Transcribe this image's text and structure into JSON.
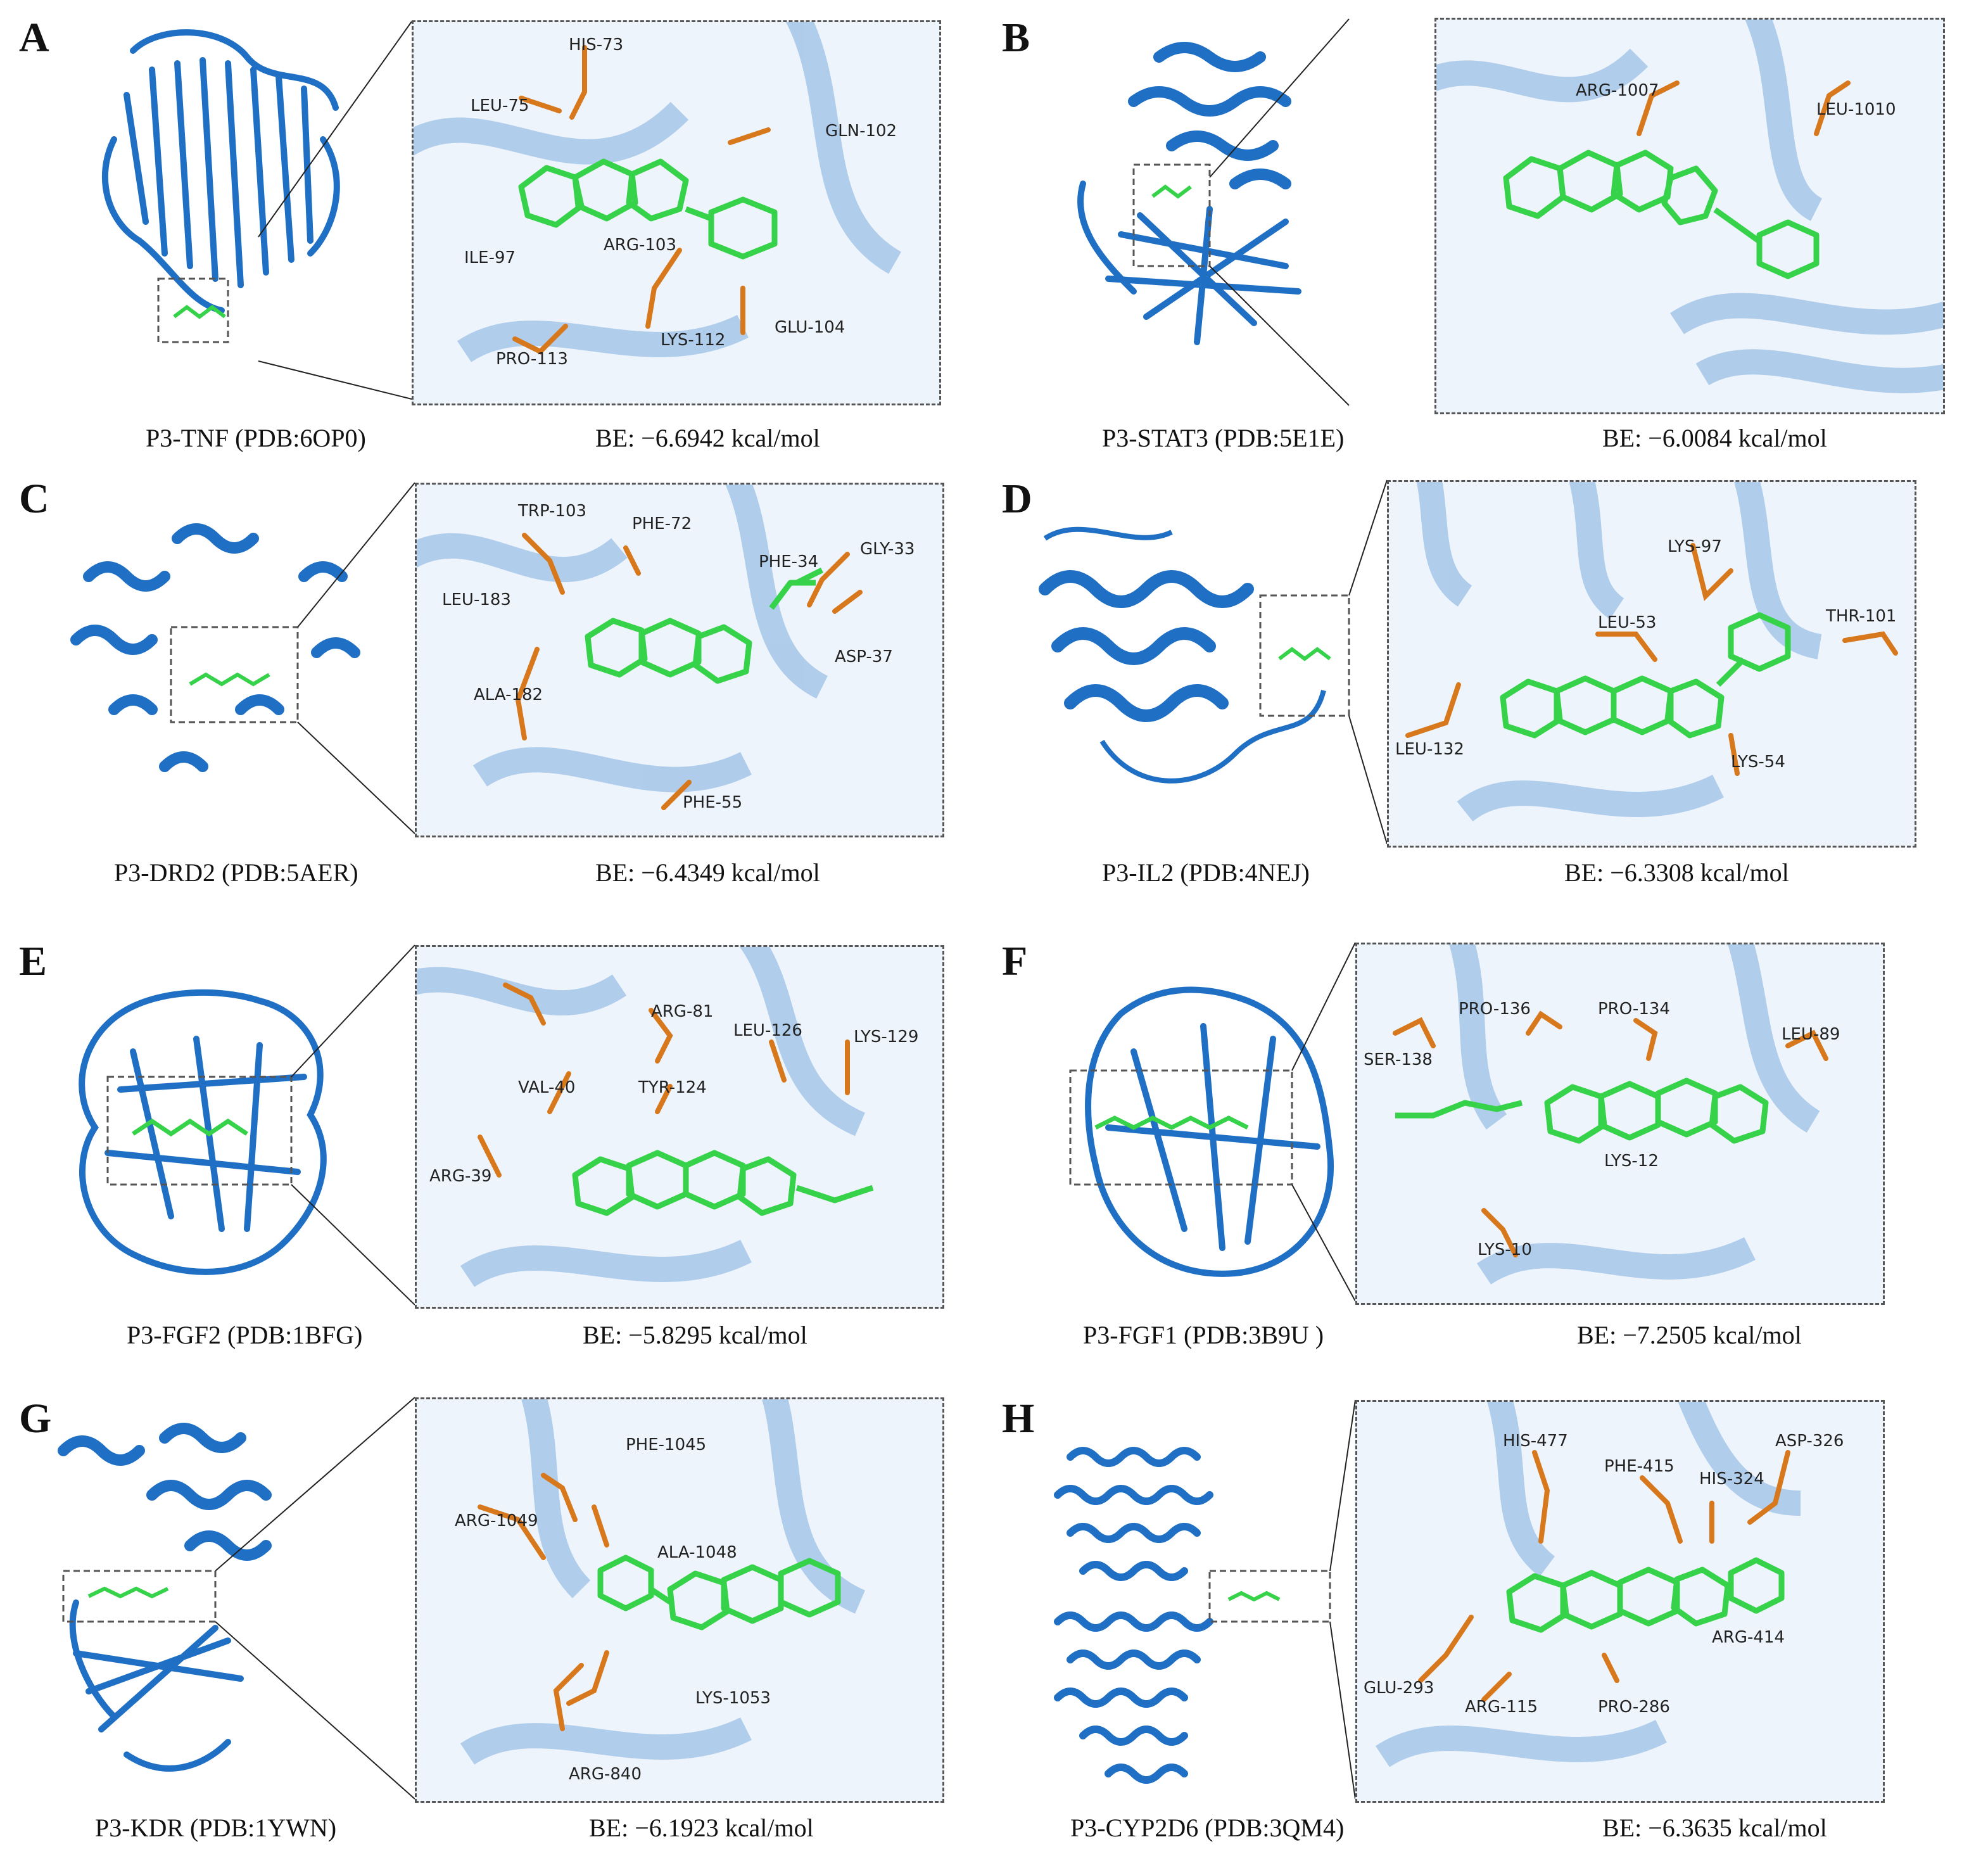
{
  "colors": {
    "protein": "#1f6fc4",
    "protein_light": "#a9c9ea",
    "ligand": "#35d24a",
    "residue": "#d8781c",
    "hbond": "#e6e600",
    "frame": "#555555"
  },
  "panels": [
    {
      "letter": "A",
      "caption": "P3-TNF (PDB:6OP0)",
      "energy": "BE:  −6.6942 kcal/mol",
      "residues": [
        "HIS-73",
        "LEU-75",
        "GLN-102",
        "ARG-103",
        "ILE-97",
        "LYS-112",
        "GLU-104",
        "PRO-113"
      ]
    },
    {
      "letter": "B",
      "caption": "P3-STAT3 (PDB:5E1E)",
      "energy": "BE:  −6.0084 kcal/mol",
      "residues": [
        "ARG-1007",
        "LEU-1010"
      ]
    },
    {
      "letter": "C",
      "caption": "P3-DRD2 (PDB:5AER)",
      "energy": "BE:  −6.4349  kcal/mol",
      "residues": [
        "TRP-103",
        "PHE-72",
        "PHE-34",
        "GLY-33",
        "LEU-183",
        "ASP-37",
        "ALA-182",
        "PHE-55"
      ]
    },
    {
      "letter": "D",
      "caption": "P3-IL2 (PDB:4NEJ)",
      "energy": "BE:  −6.3308 kcal/mol",
      "residues": [
        "LYS-97",
        "THR-101",
        "LEU-53",
        "LEU-132",
        "LYS-54"
      ]
    },
    {
      "letter": "E",
      "caption": "P3-FGF2 (PDB:1BFG)",
      "energy": "BE:  −5.8295 kcal/mol",
      "residues": [
        "ARG-81",
        "LEU-126",
        "LYS-129",
        "VAL-40",
        "TYR-124",
        "ARG-39"
      ]
    },
    {
      "letter": "F",
      "caption": "P3-FGF1 (PDB:3B9U )",
      "energy": "BE:  −7.2505 kcal/mol",
      "residues": [
        "PRO-136",
        "PRO-134",
        "LEU-89",
        "SER-138",
        "LYS-12",
        "LYS-10"
      ]
    },
    {
      "letter": "G",
      "caption": "P3-KDR (PDB:1YWN)",
      "energy": "BE:  −6.1923 kcal/mol",
      "residues": [
        "PHE-1045",
        "ARG-1049",
        "ALA-1048",
        "LYS-1053",
        "ARG-840"
      ]
    },
    {
      "letter": "H",
      "caption": "P3-CYP2D6 (PDB:3QM4)",
      "energy": "BE:  −6.3635 kcal/mol",
      "residues": [
        "HIS-477",
        "PHE-415",
        "ASP-326",
        "HIS-324",
        "ARG-414",
        "GLU-293",
        "ARG-115",
        "PRO-286"
      ]
    }
  ]
}
